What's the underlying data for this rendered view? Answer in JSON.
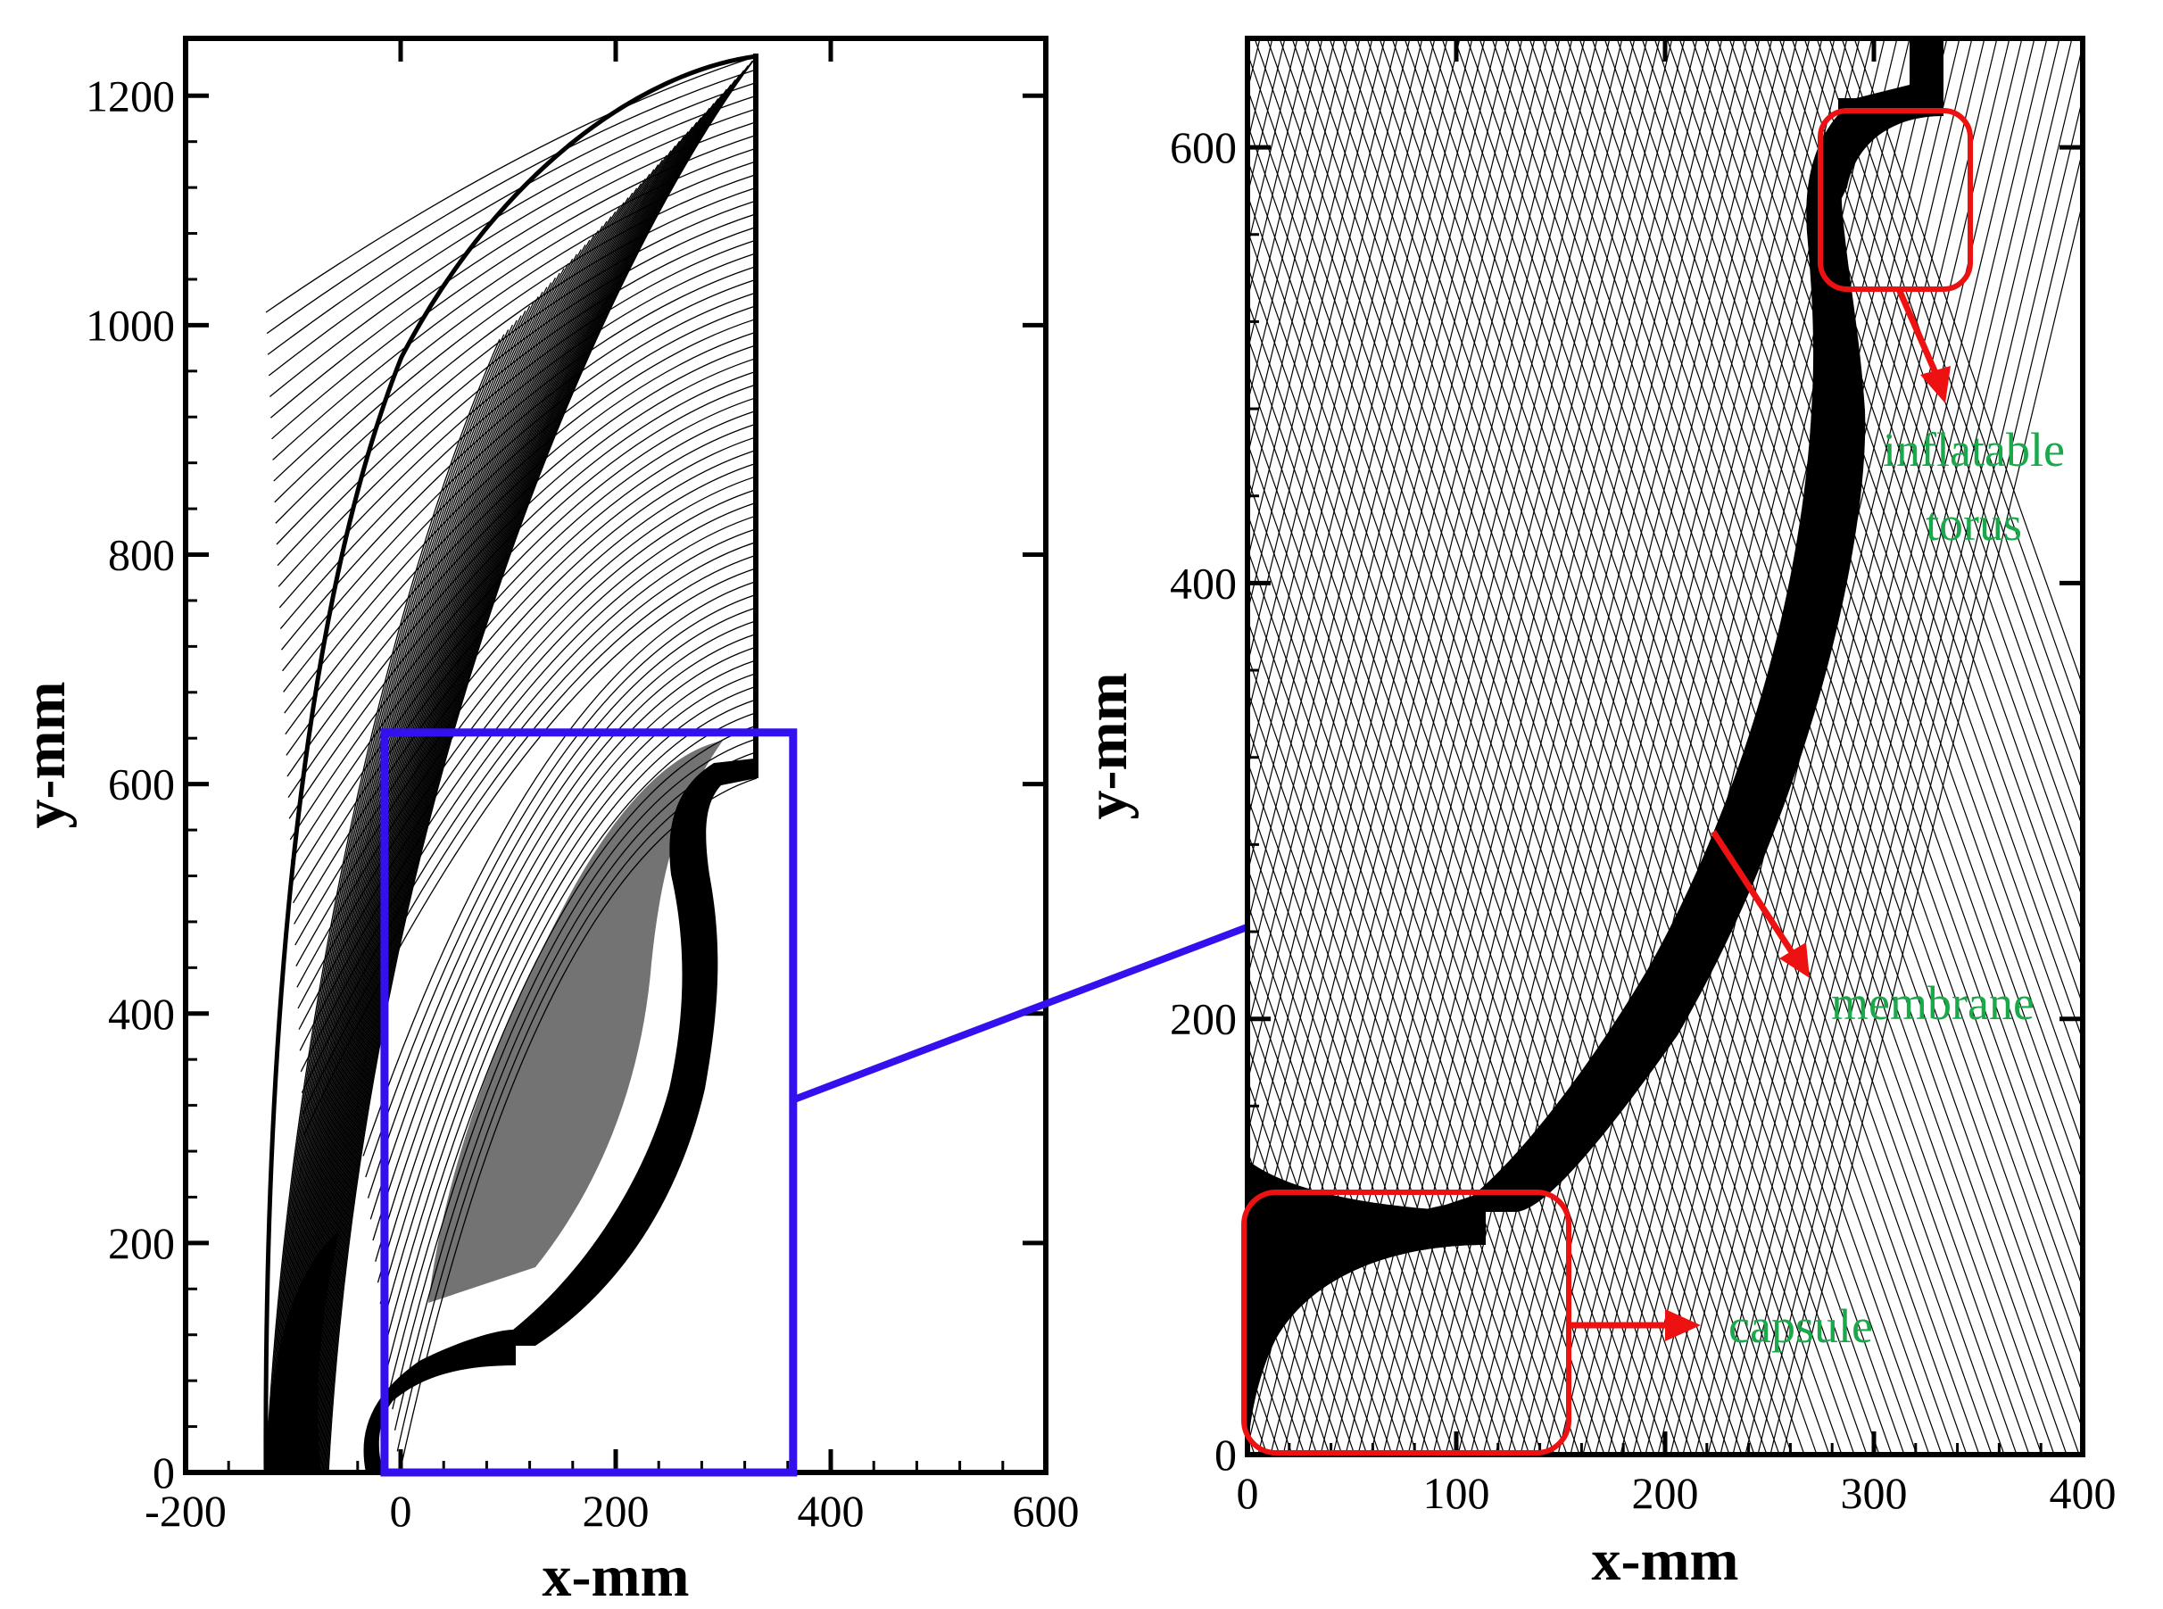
{
  "figure": {
    "colors": {
      "mesh": "#000000",
      "zoom_box": "#3311ee",
      "callout": "#ee1111",
      "annotation_text": "#1aa84a"
    }
  },
  "left_panel": {
    "xlabel": "x-mm",
    "ylabel": "y-mm",
    "xlim": [
      -200,
      600
    ],
    "ylim": [
      0,
      1250
    ],
    "x_ticks": [
      -200,
      0,
      200,
      400,
      600
    ],
    "x_tick_labels": [
      "-200",
      "0",
      "200",
      "400",
      "600"
    ],
    "y_ticks": [
      0,
      200,
      400,
      600,
      800,
      1000,
      1200
    ],
    "y_tick_labels": [
      "0",
      "200",
      "400",
      "600",
      "800",
      "1000",
      "1200"
    ],
    "zoom_box_data": {
      "x": [
        -15,
        365
      ],
      "y": [
        0,
        645
      ]
    }
  },
  "right_panel": {
    "xlabel": "x-mm",
    "ylabel": "y-mm",
    "xlim": [
      0,
      400
    ],
    "ylim": [
      0,
      650
    ],
    "x_ticks": [
      0,
      100,
      200,
      300,
      400
    ],
    "x_tick_labels": [
      "0",
      "100",
      "200",
      "300",
      "400"
    ],
    "y_ticks": [
      0,
      200,
      400,
      600
    ],
    "y_tick_labels": [
      "0",
      "200",
      "400",
      "600"
    ]
  },
  "annotations": {
    "torus_line1": "inflatable",
    "torus_line2": "torus",
    "membrane": "membrane",
    "capsule": "capsule"
  }
}
